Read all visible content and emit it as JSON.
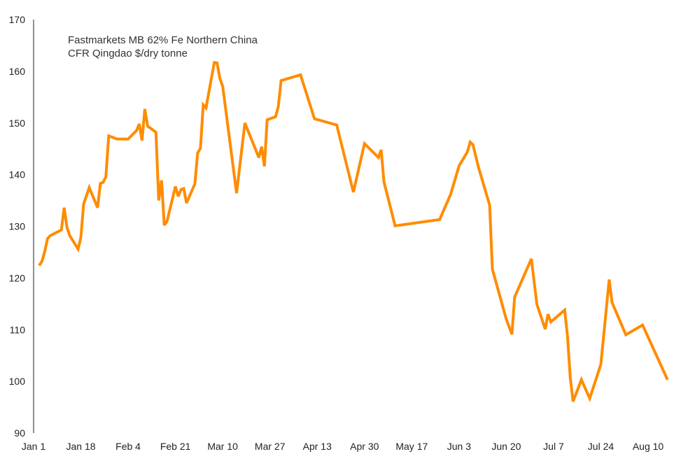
{
  "chart_data": {
    "type": "line",
    "title": [
      "Fastmarkets MB 62% Fe Northern China",
      "CFR Qingdao $/dry tonne"
    ],
    "xlabel": "",
    "ylabel": "",
    "ylim": [
      90,
      170
    ],
    "yticks": [
      90,
      100,
      110,
      120,
      130,
      140,
      150,
      160,
      170
    ],
    "xticks": [
      {
        "date": "01-01",
        "label": "Jan 1"
      },
      {
        "date": "01-18",
        "label": "Jan 18"
      },
      {
        "date": "02-04",
        "label": "Feb 4"
      },
      {
        "date": "02-21",
        "label": "Feb 21"
      },
      {
        "date": "03-10",
        "label": "Mar 10"
      },
      {
        "date": "03-27",
        "label": "Mar 27"
      },
      {
        "date": "04-13",
        "label": "Apr 13"
      },
      {
        "date": "04-30",
        "label": "Apr 30"
      },
      {
        "date": "05-17",
        "label": "May 17"
      },
      {
        "date": "06-03",
        "label": "Jun 3"
      },
      {
        "date": "06-20",
        "label": "Jun 20"
      },
      {
        "date": "07-07",
        "label": "Jul 7"
      },
      {
        "date": "07-24",
        "label": "Jul 24"
      },
      {
        "date": "08-10",
        "label": "Aug 10"
      }
    ],
    "grid": false,
    "color": "#ff8c00",
    "series": [
      {
        "x": [
          "01-03",
          "01-04",
          "01-05",
          "01-06",
          "01-07",
          "01-11",
          "01-12",
          "01-13",
          "01-14",
          "01-17",
          "01-18",
          "01-19",
          "01-21",
          "01-24",
          "01-25",
          "01-26",
          "01-27",
          "01-28",
          "01-31",
          "02-04",
          "02-07",
          "02-08",
          "02-09",
          "02-10",
          "02-11",
          "02-14",
          "02-15",
          "02-16",
          "02-17",
          "02-18",
          "02-21",
          "02-22",
          "02-23",
          "02-24",
          "02-25",
          "02-28",
          "03-01",
          "03-02",
          "03-03",
          "03-04",
          "03-07",
          "03-08",
          "03-09",
          "03-10",
          "03-15",
          "03-18",
          "03-23",
          "03-24",
          "03-25",
          "03-26",
          "03-29",
          "03-30",
          "03-31",
          "04-07",
          "04-12",
          "04-20",
          "04-26",
          "04-30",
          "05-05",
          "05-06",
          "05-07",
          "05-11",
          "05-27",
          "05-31",
          "06-03",
          "06-06",
          "06-07",
          "06-08",
          "06-10",
          "06-14",
          "06-15",
          "06-20",
          "06-22",
          "06-23",
          "06-29",
          "07-01",
          "07-04",
          "07-05",
          "07-06",
          "07-11",
          "07-12",
          "07-13",
          "07-14",
          "07-17",
          "07-20",
          "07-24",
          "07-27",
          "07-28",
          "08-02",
          "08-08",
          "08-17"
        ],
        "y": [
          122.4,
          123.2,
          125.1,
          127.6,
          128.2,
          129.3,
          133.6,
          129.8,
          128.2,
          125.6,
          127.8,
          134.3,
          137.5,
          133.6,
          138.3,
          138.5,
          139.6,
          147.5,
          146.9,
          146.9,
          148.5,
          149.8,
          146.6,
          152.7,
          149.4,
          148.2,
          135.0,
          138.9,
          130.2,
          131.0,
          137.7,
          135.8,
          137.1,
          137.3,
          134.5,
          138.2,
          144.2,
          145.1,
          153.5,
          152.9,
          161.7,
          161.6,
          158.6,
          157.1,
          136.4,
          150.0,
          143.3,
          145.4,
          141.6,
          150.6,
          151.2,
          153.1,
          158.2,
          159.3,
          150.8,
          149.6,
          136.6,
          146.0,
          143.3,
          144.8,
          138.6,
          130.1,
          131.3,
          136.2,
          141.7,
          144.4,
          146.3,
          145.8,
          141.4,
          134.1,
          121.7,
          112.0,
          109.1,
          116.3,
          123.7,
          114.9,
          110.1,
          113.0,
          111.5,
          113.8,
          108.8,
          100.7,
          96.1,
          100.3,
          96.7,
          103.3,
          119.7,
          115.3,
          109.0,
          110.9,
          100.3
        ]
      }
    ]
  }
}
